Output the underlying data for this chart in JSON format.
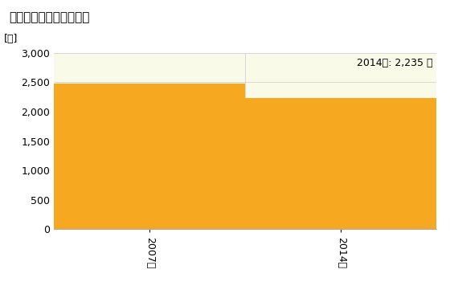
{
  "title": "小売業の従業者数の推移",
  "ylabel": "[人]",
  "categories": [
    "2007年",
    "2014年"
  ],
  "values": [
    2481,
    2235
  ],
  "bar_color": "#F5A820",
  "annotation": "2014年: 2,235 人",
  "ylim": [
    0,
    3000
  ],
  "yticks": [
    0,
    500,
    1000,
    1500,
    2000,
    2500,
    3000
  ],
  "background_color": "#FFFFFF",
  "plot_bg_color": "#FAFAE8",
  "title_fontsize": 11,
  "tick_fontsize": 9,
  "annotation_fontsize": 9,
  "bar_width": 0.5
}
